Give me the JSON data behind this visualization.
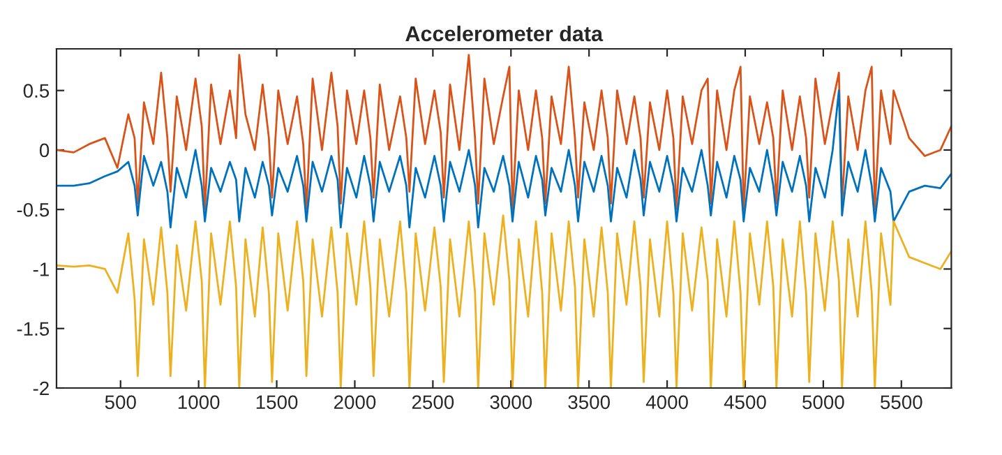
{
  "chart_data": {
    "type": "line",
    "title": "Accelerometer data",
    "x": [
      90,
      200,
      300,
      400,
      480,
      550,
      590,
      610,
      650,
      710,
      760,
      800,
      820,
      860,
      920,
      980,
      1020,
      1040,
      1080,
      1140,
      1200,
      1240,
      1260,
      1300,
      1360,
      1410,
      1450,
      1470,
      1510,
      1570,
      1630,
      1670,
      1690,
      1730,
      1790,
      1850,
      1890,
      1910,
      1950,
      2010,
      2060,
      2100,
      2120,
      2160,
      2220,
      2290,
      2330,
      2350,
      2390,
      2450,
      2510,
      2550,
      2570,
      2610,
      2670,
      2730,
      2770,
      2790,
      2830,
      2890,
      2950,
      2990,
      3010,
      3050,
      3110,
      3160,
      3200,
      3220,
      3260,
      3320,
      3370,
      3410,
      3430,
      3470,
      3530,
      3580,
      3620,
      3640,
      3680,
      3740,
      3790,
      3830,
      3850,
      3890,
      3950,
      4000,
      4040,
      4060,
      4100,
      4160,
      4220,
      4260,
      4280,
      4320,
      4380,
      4430,
      4470,
      4490,
      4530,
      4590,
      4640,
      4680,
      4700,
      4740,
      4800,
      4850,
      4890,
      4910,
      4950,
      5010,
      5060,
      5100,
      5120,
      5160,
      5220,
      5270,
      5310,
      5330,
      5370,
      5430,
      5450,
      5550,
      5650,
      5750,
      5820
    ],
    "series": [
      {
        "color": "#d95319",
        "values": [
          0,
          -0.02,
          0.05,
          0.1,
          -0.15,
          0.3,
          0.1,
          -0.45,
          0.4,
          0.05,
          0.65,
          0.1,
          -0.35,
          0.45,
          0.0,
          0.6,
          0.2,
          -0.5,
          0.55,
          0.05,
          0.5,
          0.1,
          0.8,
          0.3,
          0.0,
          0.55,
          0.1,
          -0.4,
          0.5,
          0.05,
          0.45,
          0.05,
          -0.5,
          0.6,
          0.0,
          0.65,
          0.2,
          -0.45,
          0.5,
          0.05,
          0.5,
          0.1,
          -0.4,
          0.55,
          0.0,
          0.45,
          0.1,
          -0.35,
          0.6,
          0.05,
          0.5,
          0.15,
          -0.4,
          0.55,
          0.0,
          0.8,
          0.1,
          -0.45,
          0.6,
          0.05,
          0.45,
          0.7,
          -0.5,
          0.5,
          0.0,
          0.5,
          0.1,
          -0.45,
          0.45,
          0.05,
          0.7,
          0.1,
          -0.4,
          0.4,
          0.0,
          0.5,
          0.1,
          -0.45,
          0.5,
          0.05,
          0.45,
          0.1,
          -0.4,
          0.4,
          0.0,
          0.5,
          0.1,
          -0.5,
          0.45,
          0.05,
          0.5,
          0.6,
          -0.45,
          0.5,
          0.0,
          0.5,
          0.7,
          -0.5,
          0.45,
          0.05,
          0.4,
          0.1,
          -0.45,
          0.5,
          0.0,
          0.45,
          0.1,
          -0.4,
          0.6,
          0.05,
          0.4,
          0.65,
          -0.45,
          0.45,
          0.0,
          0.5,
          0.7,
          -0.5,
          0.5,
          0.05,
          0.5,
          0.1,
          -0.05,
          0.0,
          0.2
        ]
      },
      {
        "color": "#0072bd",
        "values": [
          -0.3,
          -0.3,
          -0.28,
          -0.22,
          -0.18,
          -0.1,
          -0.3,
          -0.55,
          -0.05,
          -0.3,
          -0.1,
          -0.35,
          -0.65,
          -0.15,
          -0.4,
          0.0,
          -0.3,
          -0.6,
          -0.15,
          -0.35,
          -0.1,
          -0.25,
          -0.6,
          -0.15,
          -0.4,
          -0.1,
          -0.3,
          -0.55,
          -0.15,
          -0.35,
          -0.05,
          -0.3,
          -0.6,
          -0.1,
          -0.35,
          -0.05,
          -0.25,
          -0.65,
          -0.15,
          -0.4,
          -0.05,
          -0.3,
          -0.6,
          -0.1,
          -0.35,
          -0.05,
          -0.3,
          -0.65,
          -0.15,
          -0.4,
          -0.05,
          -0.3,
          -0.6,
          -0.1,
          -0.35,
          0.0,
          -0.3,
          -0.65,
          -0.15,
          -0.35,
          -0.05,
          -0.3,
          -0.6,
          -0.1,
          -0.4,
          -0.05,
          -0.25,
          -0.55,
          -0.15,
          -0.35,
          0.0,
          -0.3,
          -0.6,
          -0.1,
          -0.35,
          -0.05,
          -0.3,
          -0.6,
          -0.15,
          -0.4,
          0.0,
          -0.25,
          -0.55,
          -0.1,
          -0.35,
          -0.05,
          -0.3,
          -0.6,
          -0.15,
          -0.35,
          0.0,
          -0.3,
          -0.55,
          -0.1,
          -0.4,
          -0.05,
          -0.25,
          -0.6,
          -0.15,
          -0.35,
          0.0,
          -0.3,
          -0.55,
          -0.1,
          -0.35,
          -0.05,
          -0.3,
          -0.6,
          -0.15,
          -0.4,
          0.0,
          0.5,
          -0.55,
          -0.1,
          -0.35,
          0.0,
          -0.3,
          -0.6,
          -0.15,
          -0.35,
          -0.6,
          -0.35,
          -0.3,
          -0.32,
          -0.2
        ]
      },
      {
        "color": "#edb120",
        "values": [
          -0.97,
          -0.98,
          -0.97,
          -1.0,
          -1.2,
          -0.7,
          -1.25,
          -1.9,
          -0.75,
          -1.3,
          -0.65,
          -1.2,
          -1.9,
          -0.8,
          -1.35,
          -0.6,
          -1.1,
          -2.0,
          -0.7,
          -1.3,
          -0.6,
          -1.15,
          -2.0,
          -0.75,
          -1.4,
          -0.65,
          -1.2,
          -1.95,
          -0.7,
          -1.35,
          -0.6,
          -1.1,
          -1.9,
          -0.75,
          -1.4,
          -0.65,
          -1.2,
          -2.0,
          -0.7,
          -1.3,
          -0.6,
          -1.15,
          -1.9,
          -0.75,
          -1.4,
          -0.6,
          -1.2,
          -2.0,
          -0.7,
          -1.35,
          -0.65,
          -1.15,
          -1.95,
          -0.75,
          -1.4,
          -0.6,
          -1.2,
          -2.0,
          -0.7,
          -1.3,
          -0.55,
          -1.1,
          -2.0,
          -0.75,
          -1.4,
          -0.6,
          -1.2,
          -2.0,
          -0.7,
          -1.35,
          -0.6,
          -1.15,
          -2.0,
          -0.75,
          -1.4,
          -0.65,
          -1.2,
          -2.0,
          -0.7,
          -1.3,
          -0.6,
          -1.15,
          -1.95,
          -0.75,
          -1.4,
          -0.6,
          -1.2,
          -2.0,
          -0.7,
          -1.35,
          -0.65,
          -1.1,
          -2.0,
          -0.75,
          -1.4,
          -0.6,
          -1.2,
          -2.0,
          -0.7,
          -1.3,
          -0.6,
          -1.15,
          -2.0,
          -0.75,
          -1.4,
          -0.6,
          -1.2,
          -1.95,
          -0.7,
          -1.35,
          -0.6,
          -1.1,
          -2.0,
          -0.75,
          -1.4,
          -0.6,
          -1.2,
          -2.0,
          -0.7,
          -1.3,
          -0.6,
          -0.9,
          -0.95,
          -1.0,
          -0.85
        ]
      }
    ],
    "xlim": [
      90,
      5820
    ],
    "ylim": [
      -2,
      0.85
    ],
    "xticks": [
      500,
      1000,
      1500,
      2000,
      2500,
      3000,
      3500,
      4000,
      4500,
      5000,
      5500
    ],
    "yticks": [
      {
        "value": -2,
        "label": "-2"
      },
      {
        "value": -1.5,
        "label": "-1.5"
      },
      {
        "value": -1,
        "label": "-1"
      },
      {
        "value": -0.5,
        "label": "-0.5"
      },
      {
        "value": 0,
        "label": "0"
      },
      {
        "value": 0.5,
        "label": "0.5"
      }
    ]
  }
}
